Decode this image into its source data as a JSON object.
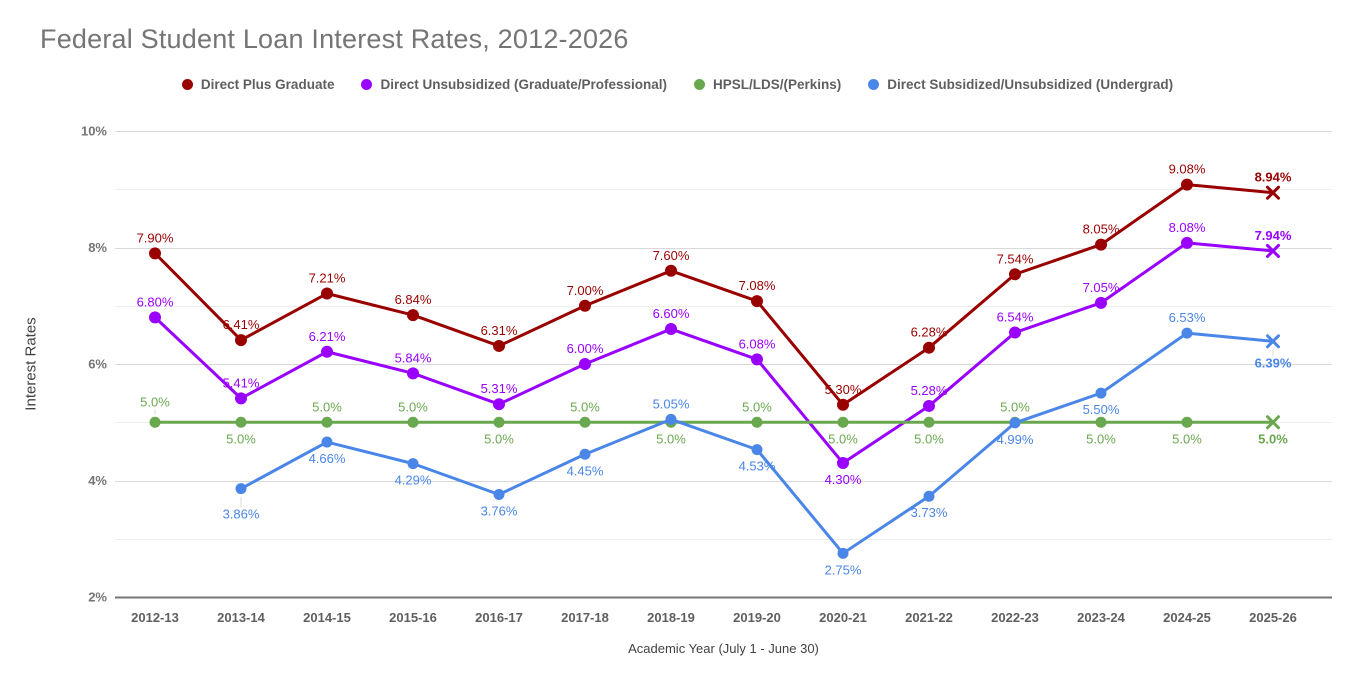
{
  "chart_data": {
    "type": "line",
    "title": "Federal Student Loan Interest Rates, 2012-2026",
    "xlabel": "Academic Year (July 1 - June 30)",
    "ylabel": "Interest Rates",
    "ylim": [
      2,
      10
    ],
    "yticks": [
      2,
      4,
      6,
      8,
      10
    ],
    "ytick_labels": [
      "2%",
      "4%",
      "6%",
      "8%",
      "10%"
    ],
    "minor_gridlines": [
      3,
      5,
      7,
      9
    ],
    "grid": "horizontal",
    "legend_position": "top",
    "categories": [
      "2012-13",
      "2013-14",
      "2014-15",
      "2015-16",
      "2016-17",
      "2017-18",
      "2018-19",
      "2019-20",
      "2020-21",
      "2021-22",
      "2022-23",
      "2023-24",
      "2024-25",
      "2025-26"
    ],
    "last_point_style": "x-marker-bold-label-projected",
    "series": [
      {
        "name": "Direct Plus Graduate",
        "color": "#990000",
        "values": [
          7.9,
          6.41,
          7.21,
          6.84,
          6.31,
          7.0,
          7.6,
          7.08,
          5.3,
          6.28,
          7.54,
          8.05,
          9.08,
          8.94
        ],
        "labels": [
          "7.90%",
          "6.41%",
          "7.21%",
          "6.84%",
          "6.31%",
          "7.00%",
          "7.60%",
          "7.08%",
          "5.30%",
          "6.28%",
          "7.54%",
          "8.05%",
          "9.08%",
          "8.94%"
        ],
        "label_side": [
          "a",
          "a",
          "a",
          "a",
          "a",
          "a",
          "a",
          "a",
          "a",
          "a",
          "a",
          "a",
          "a",
          "a"
        ],
        "label_dy": [
          0,
          0,
          0,
          0,
          0,
          0,
          0,
          0,
          0,
          0,
          0,
          0,
          0,
          0
        ]
      },
      {
        "name": "Direct Unsubsidized (Graduate/Professional)",
        "color": "#9900ff",
        "values": [
          6.8,
          5.41,
          6.21,
          5.84,
          5.31,
          6.0,
          6.6,
          6.08,
          4.3,
          5.28,
          6.54,
          7.05,
          8.08,
          7.94
        ],
        "labels": [
          "6.80%",
          "5.41%",
          "6.21%",
          "5.84%",
          "5.31%",
          "6.00%",
          "6.60%",
          "6.08%",
          "4.30%",
          "5.28%",
          "6.54%",
          "7.05%",
          "8.08%",
          "7.94%"
        ],
        "label_side": [
          "a",
          "a",
          "a",
          "a",
          "a",
          "a",
          "a",
          "a",
          "b",
          "a",
          "a",
          "a",
          "a",
          "a"
        ],
        "label_dy": [
          0,
          0,
          0,
          0,
          0,
          0,
          0,
          0,
          0,
          0,
          0,
          0,
          0,
          0
        ]
      },
      {
        "name": "HPSL/LDS/(Perkins)",
        "color": "#6aa84f",
        "values": [
          5.0,
          5.0,
          5.0,
          5.0,
          5.0,
          5.0,
          5.0,
          5.0,
          5.0,
          5.0,
          5.0,
          5.0,
          5.0,
          5.0
        ],
        "labels": [
          "5.0%",
          "5.0%",
          "5.0%",
          "5.0%",
          "5.0%",
          "5.0%",
          "5.0%",
          "5.0%",
          "5.0%",
          "5.0%",
          "5.0%",
          "5.0%",
          "5.0%",
          "5.0%"
        ],
        "label_side": [
          "a",
          "b",
          "a",
          "a",
          "b",
          "a",
          "b",
          "a",
          "b",
          "b",
          "a",
          "b",
          "b",
          "b"
        ],
        "label_dy": [
          -5,
          0,
          0,
          0,
          0,
          0,
          0,
          0,
          0,
          0,
          0,
          0,
          0,
          0
        ]
      },
      {
        "name": "Direct Subsidized/Unsubsidized (Undergrad)",
        "color": "#4a86e8",
        "values": [
          null,
          3.86,
          4.66,
          4.29,
          3.76,
          4.45,
          5.05,
          4.53,
          2.75,
          3.73,
          4.99,
          5.5,
          6.53,
          6.39
        ],
        "labels": [
          null,
          "3.86%",
          "4.66%",
          "4.29%",
          "3.76%",
          "4.45%",
          "5.05%",
          "4.53%",
          "2.75%",
          "3.73%",
          "4.99%",
          "5.50%",
          "6.53%",
          "6.39%"
        ],
        "label_side": [
          null,
          "b",
          "b",
          "b",
          "b",
          "b",
          "a",
          "b",
          "b",
          "b",
          "b",
          "b",
          "a",
          "b"
        ],
        "label_dy": [
          0,
          9,
          0,
          0,
          0,
          0,
          0,
          0,
          0,
          0,
          0,
          0,
          0,
          5
        ]
      }
    ]
  }
}
